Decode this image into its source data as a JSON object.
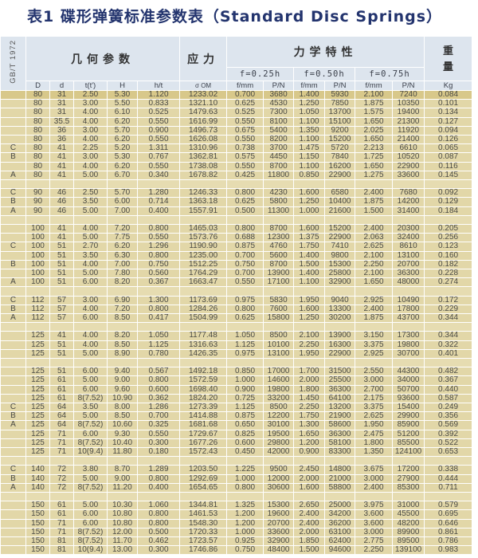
{
  "title": "表1  碟形弹簧标准参数表（Standard Disc Springs）",
  "header": {
    "standard": "GB/T 1972",
    "geometry": "几何参数",
    "stress": "应力",
    "mechanics": "力学特性",
    "weight": "重量",
    "f025": "f=0.25h",
    "f050": "f=0.50h",
    "f075": "f=0.75h",
    "columns": [
      "D",
      "d",
      "t(t')",
      "H",
      "h/t",
      "σ OM",
      "f/mm",
      "P/N",
      "f/mm",
      "P/N",
      "f/mm",
      "P/N",
      "Kg"
    ]
  },
  "rows": [
    [
      "",
      "80",
      "31",
      "2.50",
      "5.30",
      "1.120",
      "1233.02",
      "0.700",
      "3680",
      "1.400",
      "5930",
      "2.100",
      "7240",
      "0.084"
    ],
    [
      "",
      "80",
      "31",
      "3.00",
      "5.50",
      "0.833",
      "1321.10",
      "0.625",
      "4530",
      "1.250",
      "7850",
      "1.875",
      "10350",
      "0.101"
    ],
    [
      "",
      "80",
      "31",
      "4.00",
      "6.10",
      "0.525",
      "1479.63",
      "0.525",
      "7300",
      "1.050",
      "13700",
      "1.575",
      "19400",
      "0.134"
    ],
    [
      "",
      "80",
      "35.5",
      "4.00",
      "6.20",
      "0.550",
      "1616.99",
      "0.550",
      "8100",
      "1.100",
      "15100",
      "1.650",
      "21300",
      "0.127"
    ],
    [
      "",
      "80",
      "36",
      "3.00",
      "5.70",
      "0.900",
      "1496.73",
      "0.675",
      "5400",
      "1.350",
      "9200",
      "2.025",
      "11920",
      "0.094"
    ],
    [
      "",
      "80",
      "36",
      "4.00",
      "6.20",
      "0.550",
      "1626.08",
      "0.550",
      "8200",
      "1.100",
      "15200",
      "1.650",
      "21400",
      "0.126"
    ],
    [
      "C",
      "80",
      "41",
      "2.25",
      "5.20",
      "1.311",
      "1310.96",
      "0.738",
      "3700",
      "1.475",
      "5720",
      "2.213",
      "6610",
      "0.065"
    ],
    [
      "B",
      "80",
      "41",
      "3.00",
      "5.30",
      "0.767",
      "1362.81",
      "0.575",
      "4450",
      "1.150",
      "7840",
      "1.725",
      "10520",
      "0.087"
    ],
    [
      "",
      "80",
      "41",
      "4.00",
      "6.20",
      "0.550",
      "1738.08",
      "0.550",
      "8700",
      "1.100",
      "16200",
      "1.650",
      "22900",
      "0.116"
    ],
    [
      "A",
      "80",
      "41",
      "5.00",
      "6.70",
      "0.340",
      "1678.82",
      "0.425",
      "11800",
      "0.850",
      "22900",
      "1.275",
      "33600",
      "0.145"
    ],
    [],
    [
      "C",
      "90",
      "46",
      "2.50",
      "5.70",
      "1.280",
      "1246.33",
      "0.800",
      "4230",
      "1.600",
      "6580",
      "2.400",
      "7680",
      "0.092"
    ],
    [
      "B",
      "90",
      "46",
      "3.50",
      "6.00",
      "0.714",
      "1363.18",
      "0.625",
      "5800",
      "1.250",
      "10400",
      "1.875",
      "14200",
      "0.129"
    ],
    [
      "A",
      "90",
      "46",
      "5.00",
      "7.00",
      "0.400",
      "1557.91",
      "0.500",
      "11300",
      "1.000",
      "21600",
      "1.500",
      "31400",
      "0.184"
    ],
    [],
    [
      "",
      "100",
      "41",
      "4.00",
      "7.20",
      "0.800",
      "1465.03",
      "0.800",
      "8700",
      "1.600",
      "15200",
      "2.400",
      "20300",
      "0.205"
    ],
    [
      "",
      "100",
      "41",
      "5.00",
      "7.75",
      "0.550",
      "1573.76",
      "0.688",
      "12300",
      "1.375",
      "22900",
      "2.063",
      "32400",
      "0.256"
    ],
    [
      "C",
      "100",
      "51",
      "2.70",
      "6.20",
      "1.296",
      "1190.90",
      "0.875",
      "4760",
      "1.750",
      "7410",
      "2.625",
      "8610",
      "0.123"
    ],
    [
      "",
      "100",
      "51",
      "3.50",
      "6.30",
      "0.800",
      "1235.00",
      "0.700",
      "5600",
      "1.400",
      "9800",
      "2.100",
      "13100",
      "0.160"
    ],
    [
      "B",
      "100",
      "51",
      "4.00",
      "7.00",
      "0.750",
      "1512.25",
      "0.750",
      "8700",
      "1.500",
      "15300",
      "2.250",
      "20700",
      "0.182"
    ],
    [
      "",
      "100",
      "51",
      "5.00",
      "7.80",
      "0.560",
      "1764.29",
      "0.700",
      "13900",
      "1.400",
      "25800",
      "2.100",
      "36300",
      "0.228"
    ],
    [
      "A",
      "100",
      "51",
      "6.00",
      "8.20",
      "0.367",
      "1663.47",
      "0.550",
      "17100",
      "1.100",
      "32900",
      "1.650",
      "48000",
      "0.274"
    ],
    [],
    [
      "C",
      "112",
      "57",
      "3.00",
      "6.90",
      "1.300",
      "1173.69",
      "0.975",
      "5830",
      "1.950",
      "9040",
      "2.925",
      "10490",
      "0.172"
    ],
    [
      "B",
      "112",
      "57",
      "4.00",
      "7.20",
      "0.800",
      "1284.26",
      "0.800",
      "7600",
      "1.600",
      "13300",
      "2.400",
      "17800",
      "0.229"
    ],
    [
      "A",
      "112",
      "57",
      "6.00",
      "8.50",
      "0.417",
      "1504.99",
      "0.625",
      "15800",
      "1.250",
      "30200",
      "1.875",
      "43700",
      "0.344"
    ],
    [],
    [
      "",
      "125",
      "41",
      "4.00",
      "8.20",
      "1.050",
      "1177.48",
      "1.050",
      "8500",
      "2.100",
      "13900",
      "3.150",
      "17300",
      "0.344"
    ],
    [
      "",
      "125",
      "51",
      "4.00",
      "8.50",
      "1.125",
      "1316.63",
      "1.125",
      "10100",
      "2.250",
      "16300",
      "3.375",
      "19800",
      "0.322"
    ],
    [
      "",
      "125",
      "51",
      "5.00",
      "8.90",
      "0.780",
      "1426.35",
      "0.975",
      "13100",
      "1.950",
      "22900",
      "2.925",
      "30700",
      "0.401"
    ],
    [],
    [
      "",
      "125",
      "51",
      "6.00",
      "9.40",
      "0.567",
      "1492.18",
      "0.850",
      "17000",
      "1.700",
      "31500",
      "2.550",
      "44300",
      "0.482"
    ],
    [
      "",
      "125",
      "61",
      "5.00",
      "9.00",
      "0.800",
      "1572.59",
      "1.000",
      "14600",
      "2.000",
      "25500",
      "3.000",
      "34000",
      "0.367"
    ],
    [
      "",
      "125",
      "61",
      "6.00",
      "9.60",
      "0.600",
      "1698.40",
      "0.900",
      "19800",
      "1.800",
      "36300",
      "2.700",
      "50700",
      "0.440"
    ],
    [
      "",
      "125",
      "61",
      "8(7.52)",
      "10.90",
      "0.362",
      "1824.20",
      "0.725",
      "33200",
      "1.450",
      "64100",
      "2.175",
      "93600",
      "0.587"
    ],
    [
      "C",
      "125",
      "64",
      "3.50",
      "8.00",
      "1.286",
      "1273.39",
      "1.125",
      "8500",
      "2.250",
      "13200",
      "3.375",
      "15400",
      "0.249"
    ],
    [
      "B",
      "125",
      "64",
      "5.00",
      "8.50",
      "0.700",
      "1414.88",
      "0.875",
      "12200",
      "1.750",
      "21900",
      "2.625",
      "29900",
      "0.356"
    ],
    [
      "A",
      "125",
      "64",
      "8(7.52)",
      "10.60",
      "0.325",
      "1681.68",
      "0.650",
      "30100",
      "1.300",
      "58600",
      "1.950",
      "85900",
      "0.569"
    ],
    [
      "",
      "125",
      "71",
      "6.00",
      "9.30",
      "0.550",
      "1729.67",
      "0.825",
      "19500",
      "1.650",
      "36300",
      "2.475",
      "51200",
      "0.392"
    ],
    [
      "",
      "125",
      "71",
      "8(7.52)",
      "10.40",
      "0.300",
      "1677.26",
      "0.600",
      "29800",
      "1.200",
      "58100",
      "1.800",
      "85500",
      "0.522"
    ],
    [
      "",
      "125",
      "71",
      "10(9.4)",
      "11.80",
      "0.180",
      "1572.43",
      "0.450",
      "42000",
      "0.900",
      "83300",
      "1.350",
      "124100",
      "0.653"
    ],
    [],
    [
      "C",
      "140",
      "72",
      "3.80",
      "8.70",
      "1.289",
      "1203.50",
      "1.225",
      "9500",
      "2.450",
      "14800",
      "3.675",
      "17200",
      "0.338"
    ],
    [
      "B",
      "140",
      "72",
      "5.00",
      "9.00",
      "0.800",
      "1292.69",
      "1.000",
      "12000",
      "2.000",
      "21000",
      "3.000",
      "27900",
      "0.444"
    ],
    [
      "A",
      "140",
      "72",
      "8(7.52)",
      "11.20",
      "0.400",
      "1654.65",
      "0.800",
      "30600",
      "1.600",
      "58800",
      "2.400",
      "85300",
      "0.711"
    ],
    [],
    [
      "",
      "150",
      "61",
      "5.00",
      "10.30",
      "1.060",
      "1344.81",
      "1.325",
      "15300",
      "2.650",
      "25000",
      "3.975",
      "31000",
      "0.579"
    ],
    [
      "",
      "150",
      "61",
      "6.00",
      "10.80",
      "0.800",
      "1461.53",
      "1.200",
      "19600",
      "2.400",
      "34200",
      "3.600",
      "45500",
      "0.695"
    ],
    [
      "",
      "150",
      "71",
      "6.00",
      "10.80",
      "0.800",
      "1548.30",
      "1.200",
      "20700",
      "2.400",
      "36200",
      "3.600",
      "48200",
      "0.646"
    ],
    [
      "",
      "150",
      "71",
      "8(7.52)",
      "12.00",
      "0.500",
      "1720.33",
      "1.000",
      "33600",
      "2.000",
      "63100",
      "3.000",
      "89900",
      "0.861"
    ],
    [
      "",
      "150",
      "81",
      "8(7.52)",
      "11.70",
      "0.462",
      "1723.57",
      "0.925",
      "32900",
      "1.850",
      "62400",
      "2.775",
      "89500",
      "0.786"
    ],
    [
      "",
      "150",
      "81",
      "10(9.4)",
      "13.00",
      "0.300",
      "1746.86",
      "0.750",
      "48400",
      "1.500",
      "94600",
      "2.250",
      "139100",
      "0.983"
    ]
  ]
}
